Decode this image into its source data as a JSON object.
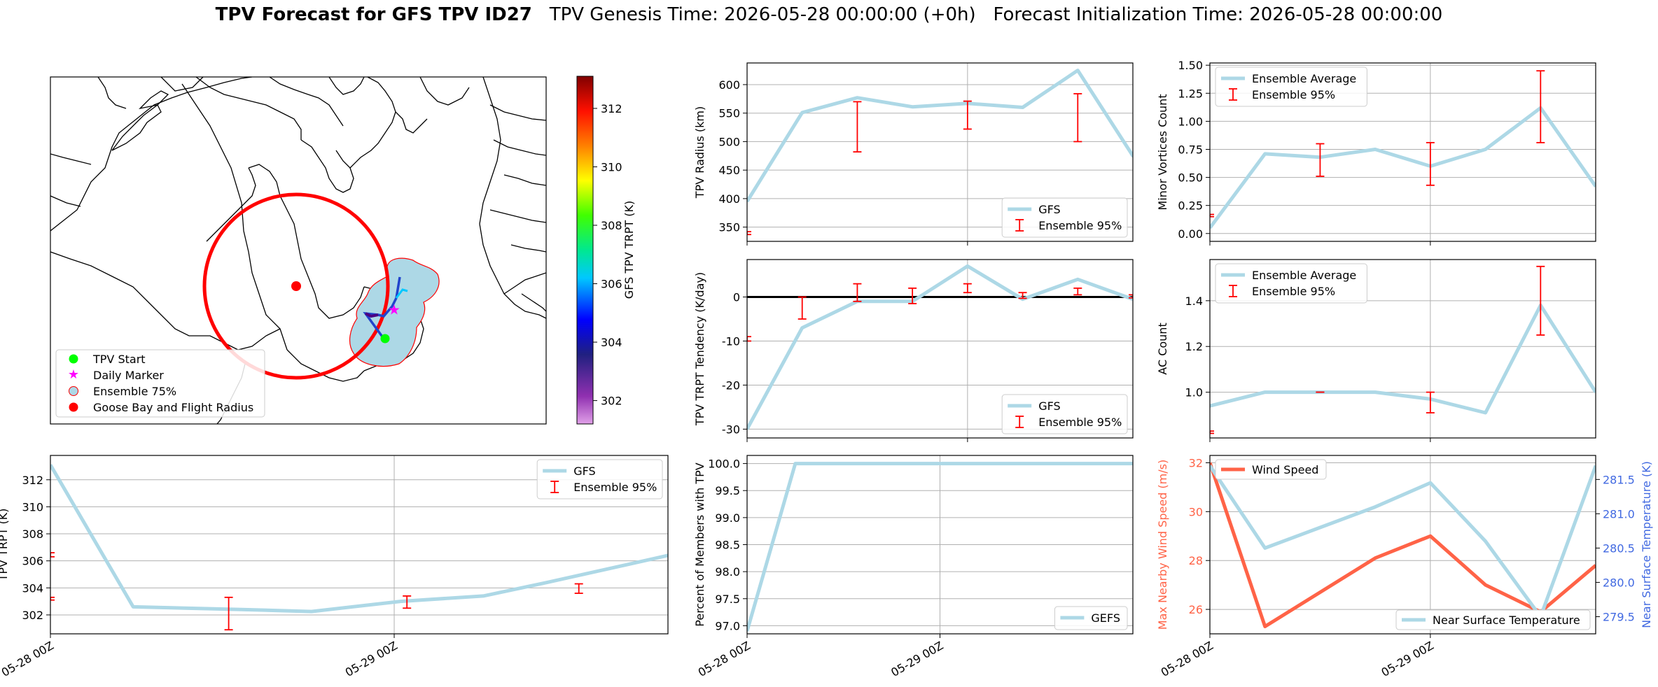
{
  "title": {
    "bold": "TPV Forecast for GFS TPV ID27",
    "genesis": "TPV Genesis Time: 2026-05-28 00:00:00 (+0h)",
    "init": "Forecast Initialization Time: 2026-05-28 00:00:00"
  },
  "colors": {
    "gfs_line": "#add8e6",
    "error_bar": "#ff0000",
    "wind": "#ff6347",
    "temp_axis": "#4169e1",
    "map_circle": "#ff0000",
    "start": "#00ff00",
    "marker": "#ff00ff",
    "goose": "#ff0000",
    "ens75": "#add8e6"
  },
  "map": {
    "legend": [
      "TPV Start",
      "Daily Marker",
      "Ensemble 75%",
      "Goose Bay and Flight Radius"
    ],
    "colorbar": {
      "label": "GFS TPV TRPT (K)",
      "ticks": [
        302,
        304,
        306,
        308,
        310,
        312
      ],
      "range": [
        301.2,
        313.1
      ],
      "cmap": "gist_ncar_r-like"
    }
  },
  "x_ticks": [
    "05-28 00Z",
    "05-29 00Z"
  ],
  "chart_data": [
    {
      "id": "trpt",
      "type": "line",
      "ylabel": "TPV TRPT (K)",
      "legend": [
        "GFS",
        "Ensemble 95%"
      ],
      "legend_loc": "upper right",
      "x_hours": [
        0,
        9,
        18,
        27,
        36,
        45,
        54
      ],
      "x_range": [
        0,
        48.5
      ],
      "series": [
        {
          "name": "GFS",
          "values": [
            313.1,
            302.6,
            302.4,
            302.25,
            303.0,
            303.4,
            304.4,
            306.4
          ],
          "x": [
            0,
            6.5,
            15,
            20.5,
            27.5,
            34,
            39,
            48.5
          ]
        }
      ],
      "errorbars": [
        {
          "x": 0,
          "lo": 306.3,
          "hi": 306.6
        },
        {
          "x": 0,
          "lo": 303.1,
          "hi": 303.3
        },
        {
          "x": 14,
          "lo": 300.9,
          "hi": 303.3
        },
        {
          "x": 28,
          "lo": 302.5,
          "hi": 303.4
        },
        {
          "x": 41.5,
          "lo": 303.6,
          "hi": 304.3
        }
      ],
      "ylim": [
        300.6,
        313.8
      ],
      "yticks": [
        302,
        304,
        306,
        308,
        310,
        312
      ]
    },
    {
      "id": "percent",
      "type": "line",
      "ylabel": "Percent of Members with TPV",
      "legend": [
        "GEFS"
      ],
      "legend_loc": "lower right",
      "series": [
        {
          "name": "GEFS",
          "x": [
            0,
            6,
            48
          ],
          "values": [
            96.9,
            100.0,
            100.0
          ]
        }
      ],
      "x_range": [
        0,
        48
      ],
      "ylim": [
        96.85,
        100.15
      ],
      "yticks": [
        97.0,
        97.5,
        98.0,
        98.5,
        99.0,
        99.5,
        100.0
      ]
    },
    {
      "id": "radius",
      "type": "line",
      "ylabel": "TPV Radius (km)",
      "legend": [
        "GFS",
        "Ensemble 95%"
      ],
      "legend_loc": "lower right",
      "series": [
        {
          "name": "GFS",
          "x": [
            0,
            6,
            12,
            18,
            24,
            30,
            36,
            42,
            48
          ],
          "values": [
            395,
            551,
            577,
            561,
            567,
            560,
            625,
            475,
            475
          ]
        }
      ],
      "x_range": [
        0,
        42
      ],
      "errorbars": [
        {
          "x": 0,
          "lo": 337,
          "hi": 342
        },
        {
          "x": 12,
          "lo": 482,
          "hi": 570
        },
        {
          "x": 24,
          "lo": 522,
          "hi": 571
        },
        {
          "x": 36,
          "lo": 500,
          "hi": 584
        }
      ],
      "ylim": [
        325,
        638
      ],
      "yticks": [
        350,
        400,
        450,
        500,
        550,
        600
      ]
    },
    {
      "id": "tendency",
      "type": "line",
      "ylabel": "TPV TRPT Tendency (K/day)",
      "legend": [
        "GFS",
        "Ensemble 95%"
      ],
      "legend_loc": "lower right",
      "series": [
        {
          "name": "GFS",
          "x": [
            0,
            6,
            12,
            18,
            24,
            30,
            36,
            42
          ],
          "values": [
            -30,
            -7,
            -1,
            -1,
            7,
            -0.5,
            4,
            -0.5
          ]
        }
      ],
      "x_range": [
        0,
        42
      ],
      "zero_line": true,
      "errorbars": [
        {
          "x": 0,
          "lo": -10,
          "hi": -9
        },
        {
          "x": 6,
          "lo": -5,
          "hi": 0
        },
        {
          "x": 12,
          "lo": -1,
          "hi": 3
        },
        {
          "x": 18,
          "lo": -1.5,
          "hi": 2
        },
        {
          "x": 24,
          "lo": 1,
          "hi": 3
        },
        {
          "x": 30,
          "lo": -0.3,
          "hi": 1
        },
        {
          "x": 36,
          "lo": 0.5,
          "hi": 2
        },
        {
          "x": 42,
          "lo": -0.2,
          "hi": 0.5
        }
      ],
      "ylim": [
        -32,
        8.5
      ],
      "yticks": [
        -30,
        -20,
        -10,
        0
      ]
    },
    {
      "id": "minor",
      "type": "line",
      "ylabel": "Minor Vortices Count",
      "legend": [
        "Ensemble Average",
        "Ensemble 95%"
      ],
      "legend_loc": "upper left",
      "series": [
        {
          "name": "Ensemble Average",
          "x": [
            0,
            6,
            12,
            18,
            24,
            30,
            36,
            42
          ],
          "values": [
            0.05,
            0.71,
            0.68,
            0.75,
            0.6,
            0.75,
            1.12,
            0.42
          ]
        }
      ],
      "x_range": [
        0,
        42
      ],
      "errorbars": [
        {
          "x": 0,
          "lo": 0.15,
          "hi": 0.17
        },
        {
          "x": 12,
          "lo": 0.51,
          "hi": 0.8
        },
        {
          "x": 24,
          "lo": 0.43,
          "hi": 0.81
        },
        {
          "x": 36,
          "lo": 0.81,
          "hi": 1.45
        }
      ],
      "ylim": [
        -0.07,
        1.52
      ],
      "yticks": [
        0.0,
        0.25,
        0.5,
        0.75,
        1.0,
        1.25,
        1.5
      ]
    },
    {
      "id": "ac",
      "type": "line",
      "ylabel": "AC Count",
      "legend": [
        "Ensemble Average",
        "Ensemble 95%"
      ],
      "legend_loc": "upper left",
      "series": [
        {
          "name": "Ensemble Average",
          "x": [
            0,
            6,
            12,
            18,
            24,
            30,
            36,
            42
          ],
          "values": [
            0.94,
            1.0,
            1.0,
            1.0,
            0.97,
            0.91,
            1.38,
            1.0
          ]
        }
      ],
      "x_range": [
        0,
        42
      ],
      "errorbars": [
        {
          "x": 0,
          "lo": 0.82,
          "hi": 0.83
        },
        {
          "x": 12,
          "lo": 1.0,
          "hi": 1.0
        },
        {
          "x": 24,
          "lo": 0.91,
          "hi": 1.0
        },
        {
          "x": 36,
          "lo": 1.25,
          "hi": 1.55
        }
      ],
      "ylim": [
        0.8,
        1.58
      ],
      "yticks": [
        1.0,
        1.2,
        1.4
      ]
    },
    {
      "id": "wind_temp",
      "type": "line",
      "ylabel": "Max Nearby Wind Speed (m/s)",
      "ylabel2": "Near Surface Temperature (K)",
      "legend": [
        "Wind Speed"
      ],
      "legend2": [
        "Near Surface Temperature"
      ],
      "series": [
        {
          "name": "Wind Speed",
          "x": [
            0,
            6,
            18,
            24,
            30,
            36,
            42
          ],
          "values": [
            32,
            25.3,
            28.1,
            29,
            27,
            25.9,
            27.8
          ],
          "axis": "left"
        },
        {
          "name": "Near Surface Temperature",
          "x": [
            0,
            6,
            12,
            18,
            24,
            30,
            36,
            42
          ],
          "values": [
            281.7,
            280.5,
            280.8,
            281.1,
            281.45,
            280.6,
            279.5,
            281.7
          ],
          "axis": "right"
        }
      ],
      "x_range": [
        0,
        42
      ],
      "ylim": [
        25,
        32.3
      ],
      "yticks": [
        26,
        28,
        30,
        32
      ],
      "ylim2": [
        279.25,
        281.85
      ],
      "yticks2": [
        279.5,
        280.0,
        280.5,
        281.0,
        281.5
      ]
    }
  ]
}
